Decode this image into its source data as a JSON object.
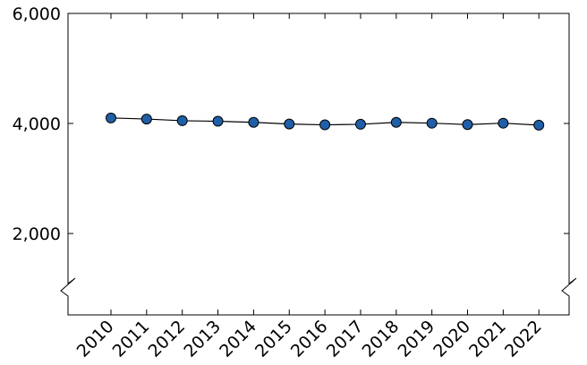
{
  "chart_data": {
    "type": "line",
    "title": "",
    "xlabel": "",
    "ylabel": "",
    "x": [
      "2010",
      "2011",
      "2012",
      "2013",
      "2014",
      "2015",
      "2016",
      "2017",
      "2018",
      "2019",
      "2020",
      "2021",
      "2022"
    ],
    "series": [
      {
        "values": [
          4100,
          4080,
          4050,
          4040,
          4020,
          3990,
          3975,
          3985,
          4020,
          4005,
          3980,
          4005,
          3970
        ]
      }
    ],
    "y_ticks": [
      2000,
      4000,
      6000
    ],
    "y_tick_labels": [
      "2,000",
      "4,000",
      "6,000"
    ],
    "ylim": [
      1000,
      6000
    ],
    "y_axis_break": true,
    "grid": false,
    "marker_color": "#1f5fa8",
    "line_color": "#000000"
  }
}
